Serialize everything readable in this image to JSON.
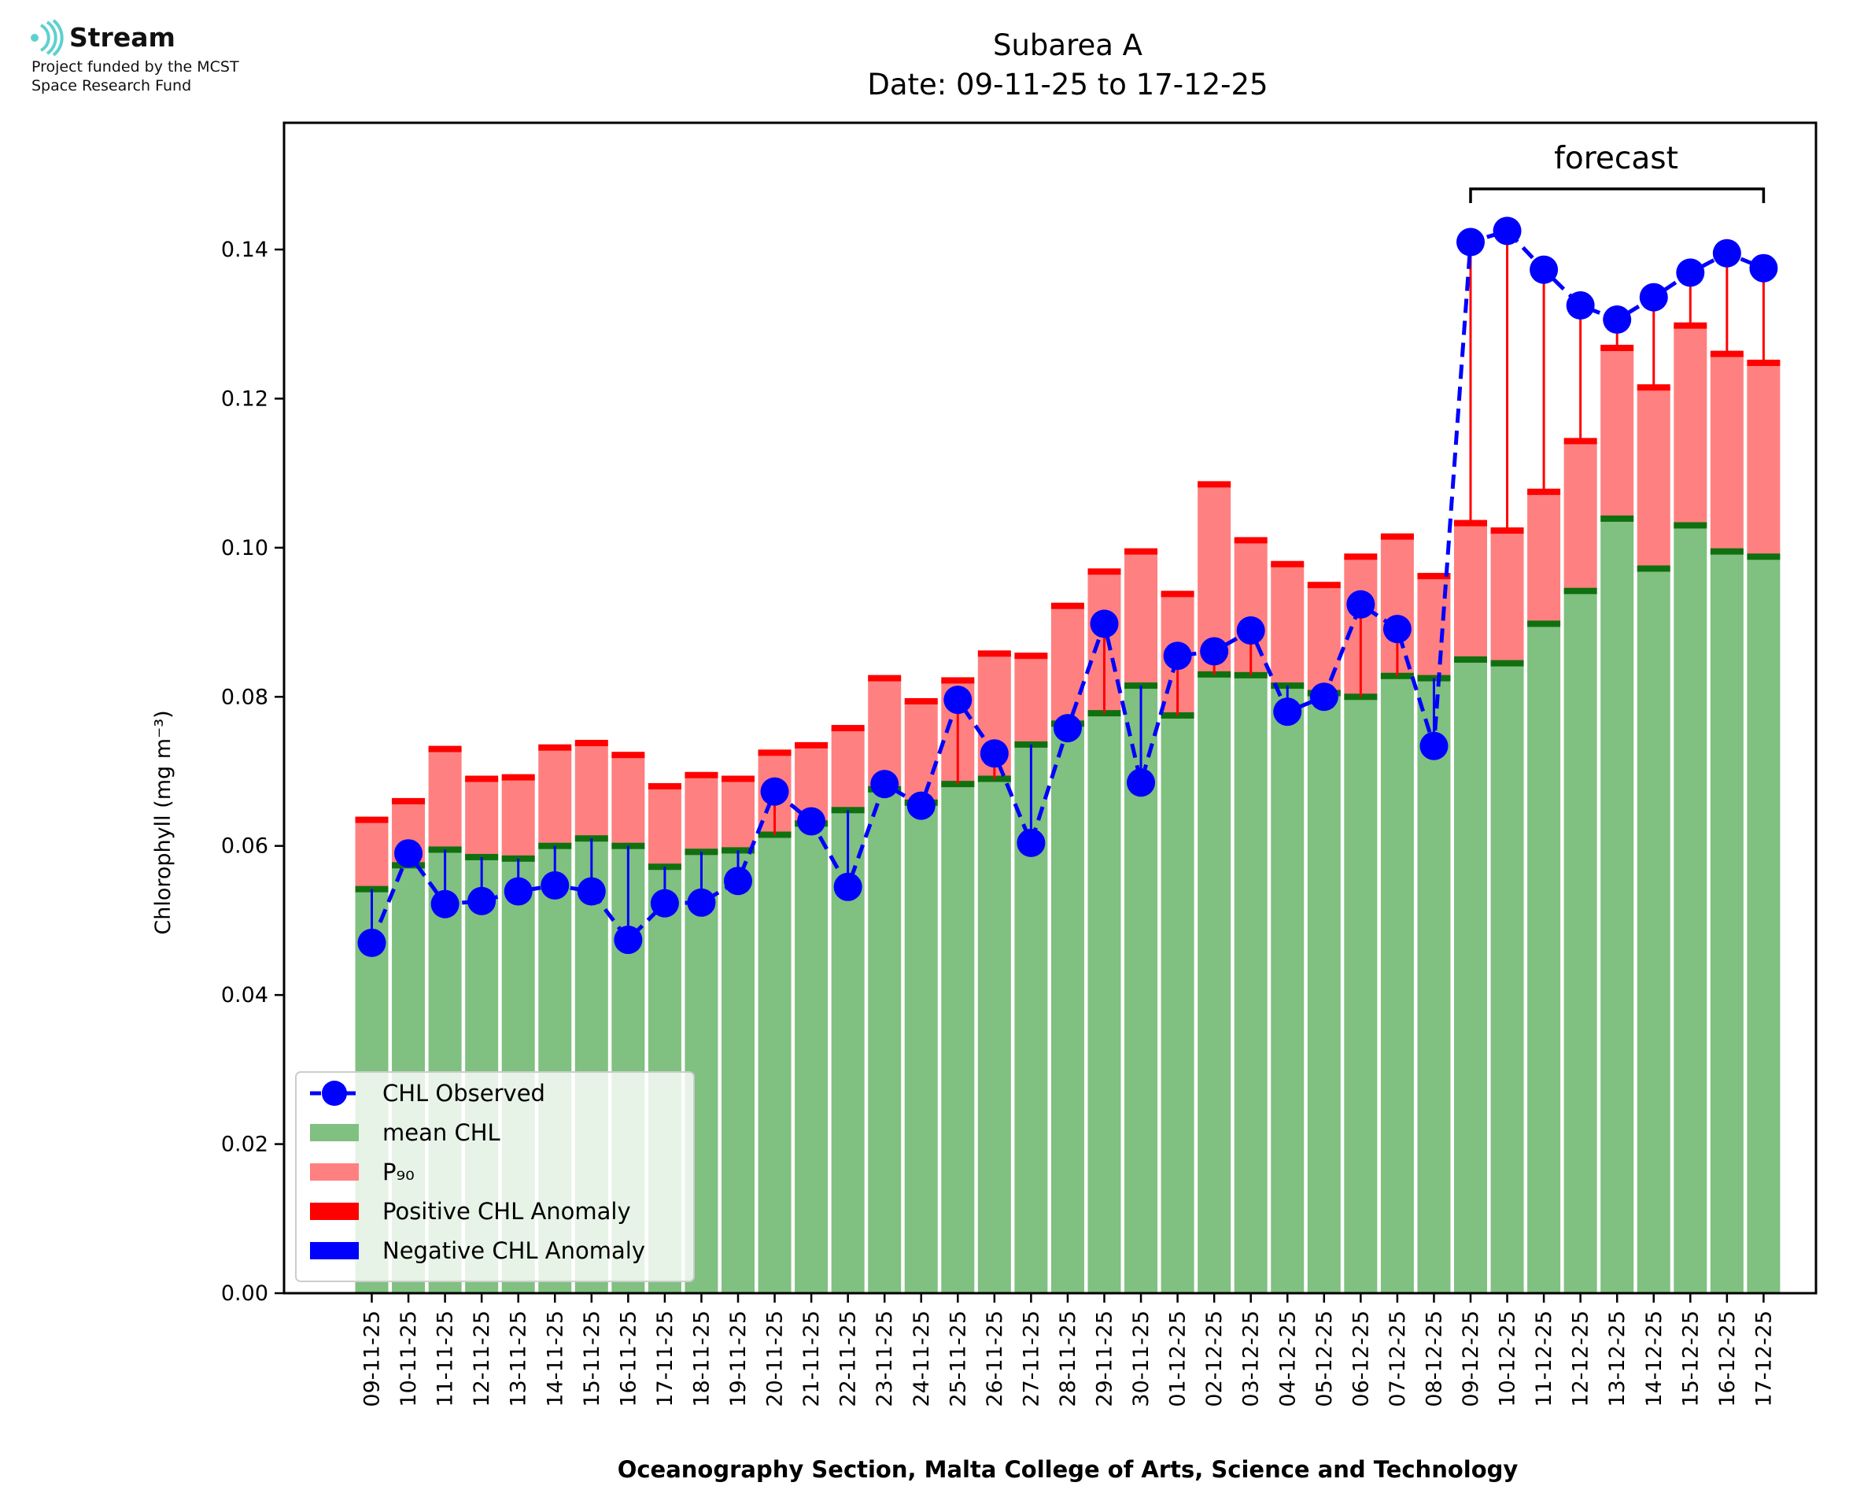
{
  "logo": {
    "name": "Stream",
    "line1": "Project funded by the MCST",
    "line2": "Space Research Fund",
    "icon": "stream-logo-icon",
    "color": "#5fd0d0"
  },
  "colors": {
    "mean": "#80c080",
    "mean_cap": "#107010",
    "p90": "#ff8080",
    "p90_cap": "#ff0000",
    "observed": "#0000ff",
    "positive": "#ff0000",
    "negative": "#0000ff"
  },
  "chart_data": {
    "type": "bar",
    "title": "Subarea A",
    "subtitle": "Date: 09-11-25 to 17-12-25",
    "xlabel": "Oceanography Section, Malta College of Arts, Science and Technology",
    "ylabel": "Chlorophyll (mg m⁻³)",
    "ylim": [
      0,
      0.157
    ],
    "yticks": [
      "0.00",
      "0.02",
      "0.04",
      "0.06",
      "0.08",
      "0.10",
      "0.12",
      "0.14"
    ],
    "forecast_label": "forecast",
    "forecast_range": [
      "09-12-25",
      "17-12-25"
    ],
    "categories": [
      "09-11-25",
      "10-11-25",
      "11-11-25",
      "12-11-25",
      "13-11-25",
      "14-11-25",
      "15-11-25",
      "16-11-25",
      "17-11-25",
      "18-11-25",
      "19-11-25",
      "20-11-25",
      "21-11-25",
      "22-11-25",
      "23-11-25",
      "24-11-25",
      "25-11-25",
      "26-11-25",
      "27-11-25",
      "28-11-25",
      "29-11-25",
      "30-11-25",
      "01-12-25",
      "02-12-25",
      "03-12-25",
      "04-12-25",
      "05-12-25",
      "06-12-25",
      "07-12-25",
      "08-12-25",
      "09-12-25",
      "10-12-25",
      "11-12-25",
      "12-12-25",
      "13-12-25",
      "14-12-25",
      "15-12-25",
      "16-12-25",
      "17-12-25"
    ],
    "series": [
      {
        "name": "mean CHL",
        "values": [
          0.0542,
          0.0574,
          0.0595,
          0.0585,
          0.0583,
          0.06,
          0.061,
          0.06,
          0.0572,
          0.0592,
          0.0594,
          0.0615,
          0.063,
          0.0648,
          0.0676,
          0.0658,
          0.0683,
          0.069,
          0.0736,
          0.0764,
          0.0778,
          0.0815,
          0.0775,
          0.083,
          0.0829,
          0.0815,
          0.0805,
          0.08,
          0.0828,
          0.0825,
          0.085,
          0.0845,
          0.0898,
          0.0942,
          0.1039,
          0.0972,
          0.103,
          0.0995,
          0.0988
        ]
      },
      {
        "name": "P₉₀",
        "values": [
          0.0635,
          0.066,
          0.073,
          0.069,
          0.0692,
          0.0732,
          0.0738,
          0.0722,
          0.068,
          0.0695,
          0.069,
          0.0725,
          0.0735,
          0.0758,
          0.0825,
          0.0794,
          0.0822,
          0.0858,
          0.0855,
          0.0922,
          0.0968,
          0.0995,
          0.0938,
          0.1085,
          0.101,
          0.0978,
          0.095,
          0.0988,
          0.1015,
          0.0962,
          0.1033,
          0.1023,
          0.1075,
          0.1143,
          0.1268,
          0.1215,
          0.1298,
          0.126,
          0.1248
        ]
      },
      {
        "name": "CHL Observed",
        "values": [
          0.047,
          0.059,
          0.0522,
          0.0526,
          0.0539,
          0.0547,
          0.0539,
          0.0474,
          0.0523,
          0.0524,
          0.0553,
          0.0673,
          0.0633,
          0.0545,
          0.0683,
          0.0654,
          0.0796,
          0.0724,
          0.0604,
          0.0758,
          0.0898,
          0.0685,
          0.0855,
          0.0861,
          0.0889,
          0.078,
          0.08,
          0.0924,
          0.0891,
          0.0734,
          0.141,
          0.1425,
          0.1373,
          0.1325,
          0.1306,
          0.1336,
          0.1369,
          0.1395,
          0.1375
        ]
      }
    ],
    "legend": [
      "CHL Observed",
      "mean CHL",
      "P₉₀",
      "Positive CHL Anomaly",
      "Negative CHL Anomaly"
    ],
    "legend_position": "lower-left"
  }
}
